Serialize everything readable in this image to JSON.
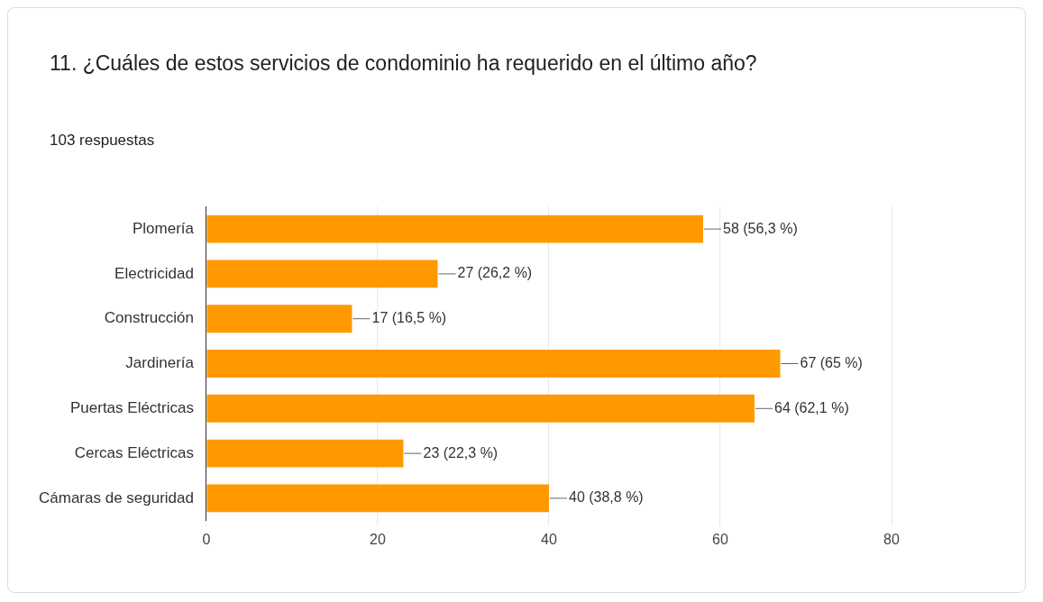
{
  "chart_data": {
    "type": "bar",
    "orientation": "horizontal",
    "title": "11. ¿Cuáles de estos servicios de condominio ha requerido en el último año?",
    "subtitle": "103 respuestas",
    "categories": [
      "Plomería",
      "Electricidad",
      "Construcción",
      "Jardinería",
      "Puertas Eléctricas",
      "Cercas Eléctricas",
      "Cámaras de seguridad"
    ],
    "values": [
      58,
      27,
      17,
      67,
      64,
      23,
      40
    ],
    "value_labels": [
      "58 (56,3 %)",
      "27 (26,2 %)",
      "17 (16,5 %)",
      "67 (65 %)",
      "64 (62,1 %)",
      "23 (22,3 %)",
      "40 (38,8 %)"
    ],
    "color": "#ff9900",
    "xlim": [
      0,
      80
    ],
    "xticks": [
      0,
      20,
      40,
      60,
      80
    ],
    "grid": "x",
    "legend": false
  }
}
